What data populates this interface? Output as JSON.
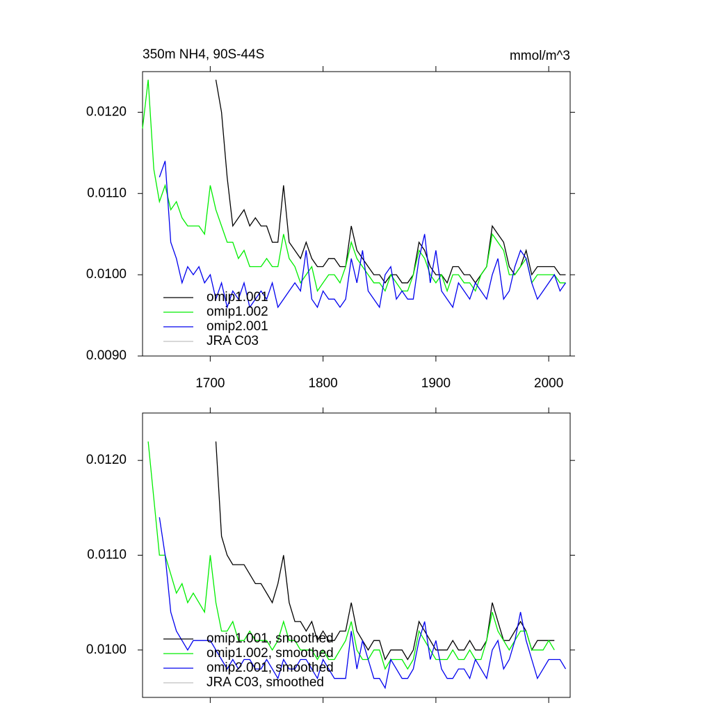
{
  "chart_data": [
    {
      "type": "line",
      "title": "350m NH4, 90S-44S",
      "units": "mmol/m^3",
      "x": [
        1640,
        1645,
        1650,
        1655,
        1660,
        1665,
        1670,
        1675,
        1680,
        1685,
        1690,
        1695,
        1700,
        1705,
        1710,
        1715,
        1720,
        1725,
        1730,
        1735,
        1740,
        1745,
        1750,
        1755,
        1760,
        1765,
        1770,
        1775,
        1780,
        1785,
        1790,
        1795,
        1800,
        1805,
        1810,
        1815,
        1820,
        1825,
        1830,
        1835,
        1840,
        1845,
        1850,
        1855,
        1860,
        1865,
        1870,
        1875,
        1880,
        1885,
        1890,
        1895,
        1900,
        1905,
        1910,
        1915,
        1920,
        1925,
        1930,
        1935,
        1940,
        1945,
        1950,
        1955,
        1960,
        1965,
        1970,
        1975,
        1980,
        1985,
        1990,
        1995,
        2000,
        2005,
        2010,
        2015
      ],
      "xlim": [
        1640,
        2019
      ],
      "xticks": [
        1700,
        1800,
        1900,
        2000
      ],
      "show_xtick_labels": true,
      "ylim": [
        0.009,
        0.0125
      ],
      "yticks": [
        {
          "value": 0.009,
          "label": "0.0090"
        },
        {
          "value": 0.01,
          "label": "0.0100"
        },
        {
          "value": 0.011,
          "label": "0.0110"
        },
        {
          "value": 0.012,
          "label": "0.0120"
        }
      ],
      "series": [
        {
          "name": "omip1.001",
          "color": "#000000",
          "values": [
            null,
            null,
            null,
            null,
            null,
            null,
            null,
            null,
            null,
            null,
            null,
            null,
            null,
            0.0124,
            0.012,
            0.0112,
            0.0106,
            0.0107,
            0.0108,
            0.0106,
            0.0107,
            0.0106,
            0.0106,
            0.0104,
            0.0104,
            0.0111,
            0.0104,
            0.0103,
            0.0102,
            0.0104,
            0.0102,
            0.0101,
            0.0101,
            0.0102,
            0.0102,
            0.0101,
            0.0101,
            0.0106,
            0.0103,
            0.0102,
            0.0101,
            0.01,
            0.01,
            0.0099,
            0.01,
            0.01,
            0.0099,
            0.0099,
            0.01,
            0.0104,
            0.0103,
            0.0101,
            0.01,
            0.01,
            0.0099,
            0.0101,
            0.0101,
            0.01,
            0.01,
            0.0099,
            0.01,
            0.0101,
            0.0106,
            0.0105,
            0.0104,
            0.0101,
            0.01,
            0.0101,
            0.0103,
            0.01,
            0.0101,
            0.0101,
            0.0101,
            0.0101,
            0.01,
            0.01
          ]
        },
        {
          "name": "omip1.002",
          "color": "#00ee00",
          "values": [
            0.0118,
            0.0124,
            0.0113,
            0.0109,
            0.0111,
            0.0108,
            0.0109,
            0.0107,
            0.0106,
            0.0106,
            0.0106,
            0.0105,
            0.0111,
            0.0108,
            0.0106,
            0.0104,
            0.0104,
            0.0102,
            0.0103,
            0.0101,
            0.0101,
            0.0101,
            0.0102,
            0.0101,
            0.0101,
            0.0105,
            0.0102,
            0.0101,
            0.0099,
            0.01,
            0.0101,
            0.0098,
            0.0099,
            0.01,
            0.01,
            0.0099,
            0.0101,
            0.0104,
            0.0102,
            0.0101,
            0.01,
            0.0099,
            0.0099,
            0.0098,
            0.01,
            0.0099,
            0.0098,
            0.0098,
            0.01,
            0.0103,
            0.0102,
            0.01,
            0.0099,
            0.01,
            0.0098,
            0.01,
            0.01,
            0.0099,
            0.0099,
            0.0098,
            0.01,
            0.0101,
            0.0105,
            0.0104,
            0.0103,
            0.01,
            0.01,
            0.0101,
            0.0102,
            0.0099,
            0.01,
            0.01,
            0.01,
            0.01,
            0.0099,
            0.0099
          ]
        },
        {
          "name": "omip2.001",
          "color": "#0000ee",
          "values": [
            null,
            null,
            null,
            0.0112,
            0.0114,
            0.0104,
            0.0102,
            0.0099,
            0.0101,
            0.01,
            0.0101,
            0.0099,
            0.01,
            0.0097,
            0.0099,
            0.0096,
            0.0098,
            0.0097,
            0.0099,
            0.0096,
            0.0097,
            0.0098,
            0.0097,
            0.0099,
            0.0096,
            0.0097,
            0.0098,
            0.0099,
            0.0098,
            0.0103,
            0.0097,
            0.0096,
            0.0098,
            0.0097,
            0.0097,
            0.0096,
            0.0097,
            0.0102,
            0.0099,
            0.0103,
            0.0098,
            0.0097,
            0.0096,
            0.01,
            0.0101,
            0.0097,
            0.0098,
            0.0097,
            0.0097,
            0.0102,
            0.0105,
            0.0099,
            0.0103,
            0.0098,
            0.0097,
            0.0096,
            0.0099,
            0.0098,
            0.0097,
            0.0099,
            0.0098,
            0.0097,
            0.01,
            0.0102,
            0.0097,
            0.0098,
            0.0101,
            0.0103,
            0.0102,
            0.0099,
            0.0097,
            0.0098,
            0.0099,
            0.01,
            0.0098,
            0.0099
          ]
        },
        {
          "name": "JRA C03",
          "color": "#c0c0c0",
          "values": [
            null,
            null,
            null,
            null,
            null,
            null,
            null,
            null,
            null,
            null,
            null,
            null,
            null,
            null,
            null,
            null,
            null,
            null,
            null,
            null,
            null,
            null,
            null,
            null,
            null,
            null,
            null,
            null,
            null,
            null,
            null,
            null,
            null,
            null,
            null,
            null,
            null,
            null,
            null,
            null,
            null,
            null,
            null,
            null,
            null,
            null,
            null,
            null,
            null,
            null,
            null,
            null,
            null,
            null,
            null,
            null,
            null,
            null,
            null,
            null,
            null,
            null,
            null,
            null,
            null,
            null,
            null,
            null,
            null,
            null,
            null,
            null,
            null,
            null,
            null,
            null
          ]
        }
      ]
    },
    {
      "type": "line",
      "x": [
        1640,
        1645,
        1650,
        1655,
        1660,
        1665,
        1670,
        1675,
        1680,
        1685,
        1690,
        1695,
        1700,
        1705,
        1710,
        1715,
        1720,
        1725,
        1730,
        1735,
        1740,
        1745,
        1750,
        1755,
        1760,
        1765,
        1770,
        1775,
        1780,
        1785,
        1790,
        1795,
        1800,
        1805,
        1810,
        1815,
        1820,
        1825,
        1830,
        1835,
        1840,
        1845,
        1850,
        1855,
        1860,
        1865,
        1870,
        1875,
        1880,
        1885,
        1890,
        1895,
        1900,
        1905,
        1910,
        1915,
        1920,
        1925,
        1930,
        1935,
        1940,
        1945,
        1950,
        1955,
        1960,
        1965,
        1970,
        1975,
        1980,
        1985,
        1990,
        1995,
        2000,
        2005,
        2010,
        2015
      ],
      "xlim": [
        1640,
        2019
      ],
      "xticks": [
        1700,
        1800,
        1900,
        2000
      ],
      "show_xtick_labels": false,
      "ylim": [
        0.0095,
        0.0125
      ],
      "yticks": [
        {
          "value": 0.01,
          "label": "0.0100"
        },
        {
          "value": 0.011,
          "label": "0.0110"
        },
        {
          "value": 0.012,
          "label": "0.0120"
        }
      ],
      "series": [
        {
          "name": "omip1.001, smoothed",
          "color": "#000000",
          "values": [
            null,
            null,
            null,
            null,
            null,
            null,
            null,
            null,
            null,
            null,
            null,
            null,
            null,
            0.0122,
            0.0112,
            0.011,
            0.0109,
            0.0109,
            0.0109,
            0.0108,
            0.0107,
            0.0107,
            0.0106,
            0.0105,
            0.0107,
            0.011,
            0.0105,
            0.0103,
            0.0103,
            0.0102,
            0.0103,
            0.0101,
            0.0102,
            0.0101,
            0.0101,
            0.0102,
            0.0102,
            0.0105,
            0.0102,
            0.0101,
            0.01,
            0.0101,
            0.0101,
            0.0099,
            0.01,
            0.01,
            0.01,
            0.0099,
            0.01,
            0.0103,
            0.0102,
            0.0101,
            0.01,
            0.01,
            0.01,
            0.0101,
            0.01,
            0.01,
            0.0101,
            0.01,
            0.01,
            0.0101,
            0.0105,
            0.0103,
            0.0101,
            0.0101,
            0.0102,
            0.0103,
            0.0102,
            0.01,
            0.0101,
            0.0101,
            0.0101,
            0.0101,
            null,
            null
          ]
        },
        {
          "name": "omip1.002, smoothed",
          "color": "#00ee00",
          "values": [
            null,
            0.0122,
            0.0116,
            0.011,
            0.011,
            0.0108,
            0.0106,
            0.0107,
            0.0105,
            0.0106,
            0.0105,
            0.0104,
            0.011,
            0.0105,
            0.0102,
            0.0102,
            0.0103,
            0.0101,
            0.0101,
            0.0102,
            0.0101,
            0.0101,
            0.0101,
            0.01,
            0.0101,
            0.0103,
            0.0101,
            0.0101,
            0.01,
            0.01,
            0.01,
            0.0099,
            0.01,
            0.0099,
            0.0099,
            0.01,
            0.0101,
            0.0103,
            0.01,
            0.0099,
            0.0099,
            0.01,
            0.01,
            0.0098,
            0.0099,
            0.0099,
            0.0099,
            0.0098,
            0.0099,
            0.0102,
            0.0101,
            0.01,
            0.0099,
            0.0099,
            0.0099,
            0.01,
            0.0099,
            0.0099,
            0.01,
            0.0099,
            0.0099,
            0.0101,
            0.0104,
            0.0102,
            0.0101,
            0.01,
            0.0101,
            0.0102,
            0.0102,
            0.01,
            0.01,
            0.01,
            0.0101,
            0.01,
            null,
            null
          ]
        },
        {
          "name": "omip2.001, smoothed",
          "color": "#0000ee",
          "values": [
            null,
            null,
            null,
            0.0114,
            0.011,
            0.0104,
            0.0102,
            0.0101,
            0.01,
            0.0101,
            0.0101,
            0.0101,
            0.0101,
            0.01,
            0.0099,
            0.0098,
            0.0099,
            0.0098,
            0.0099,
            0.0099,
            0.0098,
            0.0098,
            0.0099,
            0.0098,
            0.0097,
            0.0099,
            0.0098,
            0.0098,
            0.0099,
            0.0099,
            0.0098,
            0.0097,
            0.0099,
            0.0098,
            0.0097,
            0.0097,
            0.0097,
            0.0102,
            0.0098,
            0.0101,
            0.0099,
            0.0097,
            0.0097,
            0.0096,
            0.0099,
            0.0098,
            0.0097,
            0.0097,
            0.0098,
            0.0101,
            0.0103,
            0.0099,
            0.0101,
            0.0098,
            0.0097,
            0.0097,
            0.0098,
            0.0098,
            0.0097,
            0.0099,
            0.0098,
            0.0097,
            0.01,
            0.0101,
            0.0098,
            0.0099,
            0.0101,
            0.0104,
            0.0101,
            0.0099,
            0.0097,
            0.0098,
            0.0099,
            0.0099,
            0.0099,
            0.0098
          ]
        },
        {
          "name": "JRA C03, smoothed",
          "color": "#c0c0c0",
          "values": [
            null,
            null,
            null,
            null,
            null,
            null,
            null,
            null,
            null,
            null,
            null,
            null,
            null,
            null,
            null,
            null,
            null,
            null,
            null,
            null,
            null,
            null,
            null,
            null,
            null,
            null,
            null,
            null,
            null,
            null,
            null,
            null,
            null,
            null,
            null,
            null,
            null,
            null,
            null,
            null,
            null,
            null,
            null,
            null,
            null,
            null,
            null,
            null,
            null,
            null,
            null,
            null,
            null,
            null,
            null,
            null,
            null,
            null,
            null,
            null,
            null,
            null,
            null,
            null,
            null,
            null,
            null,
            null,
            null,
            null,
            null,
            null,
            null,
            null,
            null,
            null
          ]
        }
      ]
    }
  ]
}
